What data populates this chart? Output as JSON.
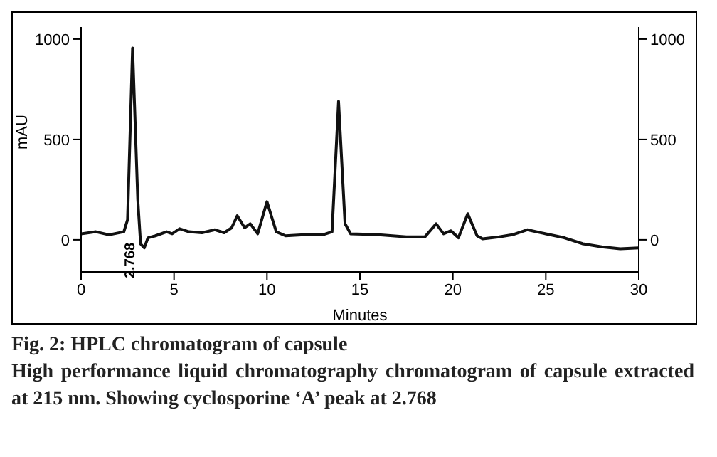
{
  "chart_data": {
    "type": "line",
    "title": "Fig. 2: HPLC chromatogram of capsule",
    "subtitle": "High performance liquid chromatography chromatogram of capsule extracted at 215 nm. Showing cyclosporine ‘A’ peak at 2.768",
    "xlabel": "Minutes",
    "ylabel": "mAU",
    "x": [
      0,
      0.8,
      1.5,
      2.3,
      2.5,
      2.77,
      3.05,
      3.2,
      3.4,
      3.6,
      4.0,
      4.6,
      4.9,
      5.3,
      5.8,
      6.5,
      7.2,
      7.7,
      8.1,
      8.4,
      8.8,
      9.1,
      9.5,
      10.0,
      10.5,
      11,
      12,
      13,
      13.5,
      13.85,
      14.2,
      14.5,
      16,
      17.5,
      18.5,
      19.1,
      19.5,
      19.9,
      20.3,
      20.8,
      21.3,
      21.6,
      22.5,
      23.2,
      24,
      25,
      26,
      27,
      28,
      29,
      30
    ],
    "series": [
      {
        "color": "#111111",
        "values": [
          30,
          40,
          25,
          40,
          100,
          955,
          200,
          -20,
          -40,
          10,
          20,
          40,
          30,
          55,
          40,
          35,
          50,
          35,
          60,
          120,
          60,
          80,
          30,
          190,
          40,
          20,
          25,
          25,
          40,
          690,
          80,
          30,
          25,
          15,
          15,
          80,
          30,
          45,
          10,
          130,
          20,
          5,
          15,
          25,
          50,
          30,
          10,
          -20,
          -35,
          -45,
          -40
        ]
      }
    ],
    "annotations": [
      "2.768"
    ],
    "xlim": [
      0,
      30
    ],
    "xticks": [
      0,
      5,
      10,
      15,
      20,
      25,
      30
    ],
    "ylim": [
      -160,
      1060
    ],
    "yticks": [
      0,
      500,
      1000
    ],
    "y2lim": [
      -160,
      1060
    ],
    "y2ticks": [
      0,
      500,
      1000
    ],
    "marker": "none"
  }
}
